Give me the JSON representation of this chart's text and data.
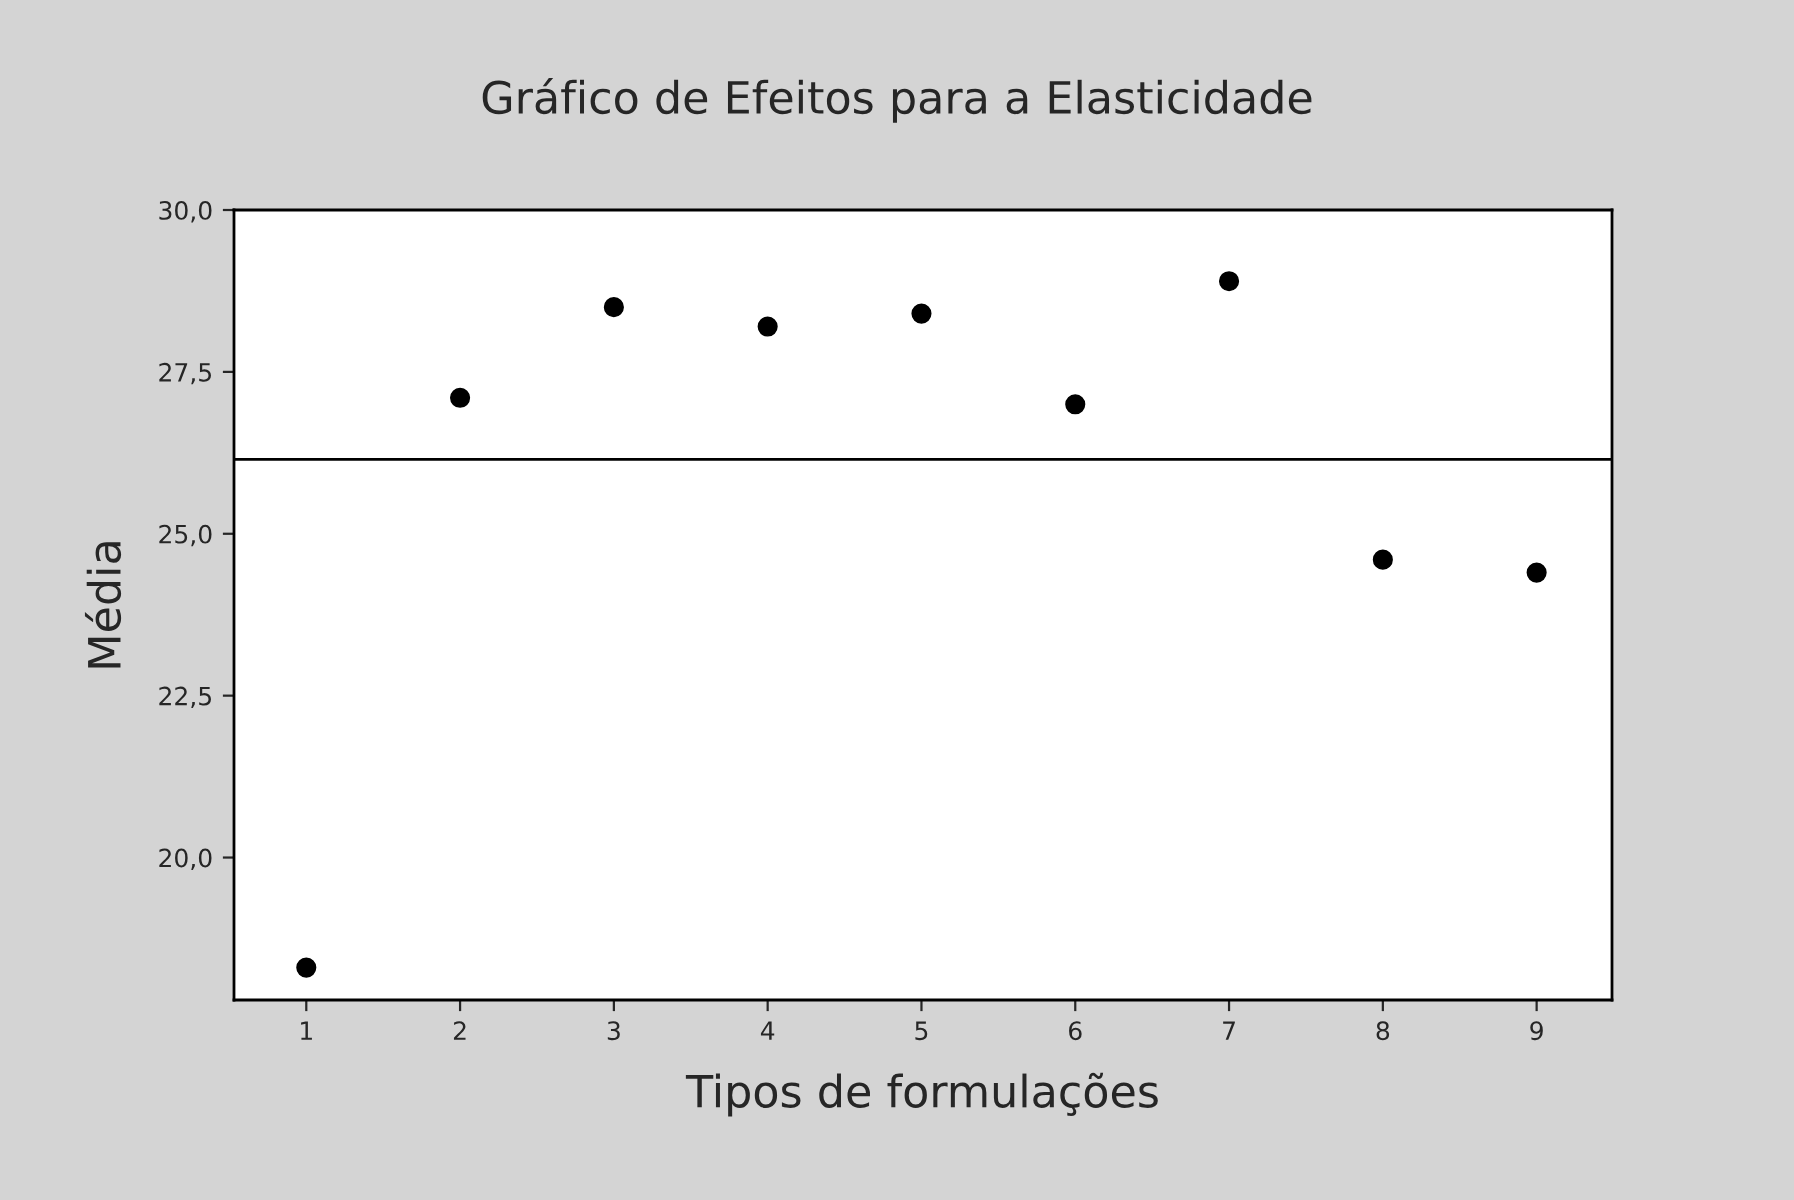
{
  "chart_data": {
    "type": "scatter",
    "title": "Gráfico de Efeitos para a Elasticidade",
    "xlabel": "Tipos de formulações",
    "ylabel": "Média",
    "x": [
      1,
      2,
      3,
      4,
      5,
      6,
      7,
      8,
      9
    ],
    "series": [
      {
        "color": "#000000",
        "values": [
          18.3,
          27.1,
          28.5,
          28.2,
          28.4,
          27.0,
          28.9,
          24.6,
          24.4
        ]
      }
    ],
    "xlim": [
      0.53,
      9.49
    ],
    "xticks": [
      1,
      2,
      3,
      4,
      5,
      6,
      7,
      8,
      9
    ],
    "ylim": [
      17.8,
      30.0
    ],
    "yticks": [
      {
        "value": 20,
        "label": "20,0"
      },
      {
        "value": 22.5,
        "label": "22,5"
      },
      {
        "value": 25,
        "label": "25,0"
      },
      {
        "value": 27.5,
        "label": "27,5"
      },
      {
        "value": 30,
        "label": "30,0"
      }
    ],
    "ref_lines": [
      {
        "axis": "y",
        "value": 26.15,
        "color": "#000000"
      }
    ],
    "marker": "circle",
    "grid": false
  }
}
